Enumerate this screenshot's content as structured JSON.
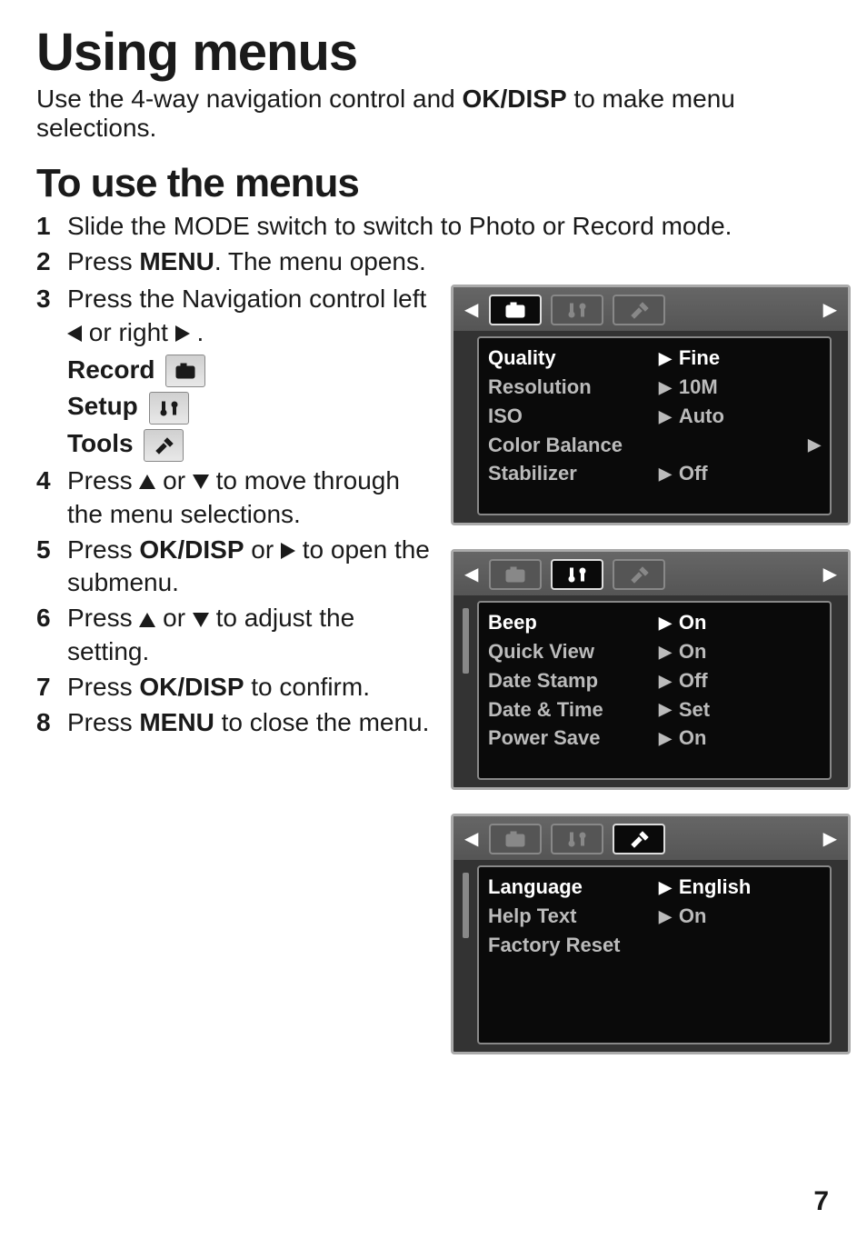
{
  "page_number": "7",
  "h1": "Using menus",
  "intro_pre": "Use the 4-way navigation control and ",
  "intro_bold": "OK/DISP",
  "intro_post": " to make menu selections.",
  "h2": "To use the menus",
  "steps": [
    {
      "parts": [
        {
          "t": "Slide the MODE switch to switch to Photo or Record mode."
        }
      ]
    },
    {
      "parts": [
        {
          "t": "Press "
        },
        {
          "t": "MENU",
          "b": true
        },
        {
          "t": ". The menu opens."
        }
      ]
    },
    {
      "parts": [
        {
          "t": "Press the Navigation control left "
        },
        {
          "icon": "tri-left"
        },
        {
          "t": " or right "
        },
        {
          "icon": "tri-right"
        },
        {
          "t": " ."
        }
      ],
      "labels": [
        {
          "t": "Record",
          "box": "camera"
        },
        {
          "t": "Setup",
          "box": "setup"
        },
        {
          "t": "Tools",
          "box": "tools"
        }
      ]
    },
    {
      "parts": [
        {
          "t": "Press "
        },
        {
          "icon": "tri-up"
        },
        {
          "t": " or "
        },
        {
          "icon": "tri-down"
        },
        {
          "t": " to move through the menu selections."
        }
      ]
    },
    {
      "parts": [
        {
          "t": "Press "
        },
        {
          "t": "OK/DISP",
          "b": true
        },
        {
          "t": " or "
        },
        {
          "icon": "tri-right"
        },
        {
          "t": " to open the submenu."
        }
      ]
    },
    {
      "parts": [
        {
          "t": "Press "
        },
        {
          "icon": "tri-up"
        },
        {
          "t": " or "
        },
        {
          "icon": "tri-down"
        },
        {
          "t": " to adjust the setting."
        }
      ]
    },
    {
      "parts": [
        {
          "t": "Press "
        },
        {
          "t": "OK/DISP",
          "b": true
        },
        {
          "t": " to confirm."
        }
      ]
    },
    {
      "parts": [
        {
          "t": "Press "
        },
        {
          "t": "MENU",
          "b": true
        },
        {
          "t": " to close the menu."
        }
      ]
    }
  ],
  "screens": [
    {
      "active_tab": 0,
      "rows": [
        {
          "label": "Quality",
          "value": "Fine",
          "hot": true
        },
        {
          "label": "Resolution",
          "value": "10M"
        },
        {
          "label": "ISO",
          "value": "Auto"
        },
        {
          "label": "Color Balance",
          "value": "",
          "far_caret": true
        },
        {
          "label": "Stabilizer",
          "value": "Off"
        }
      ]
    },
    {
      "active_tab": 1,
      "rows": [
        {
          "label": "Beep",
          "value": "On",
          "hot": true
        },
        {
          "label": "Quick View",
          "value": "On"
        },
        {
          "label": "Date Stamp",
          "value": "Off"
        },
        {
          "label": "Date & Time",
          "value": "Set"
        },
        {
          "label": "Power Save",
          "value": "On"
        }
      ]
    },
    {
      "active_tab": 2,
      "rows": [
        {
          "label": "Language",
          "value": "English",
          "hot": true
        },
        {
          "label": "Help Text",
          "value": "On"
        },
        {
          "label": "Factory Reset",
          "value": ""
        }
      ]
    }
  ],
  "colors": {
    "text": "#1a1a1a",
    "screen_bg": "#333333",
    "panel_bg": "#0a0a0a",
    "row_inactive": "#bbbbbb",
    "row_active": "#ffffff",
    "tab_border": "#888888"
  }
}
